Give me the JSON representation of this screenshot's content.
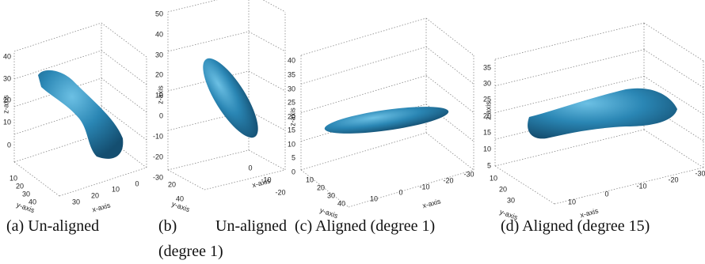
{
  "panels": [
    {
      "caption": "(a) Un-aligned",
      "x_label": "x-axis",
      "y_label": "y-axis",
      "z_label": "z-axis",
      "x_ticks": [
        "30",
        "20",
        "10",
        "0"
      ],
      "y_ticks": [
        "10",
        "20",
        "30",
        "40"
      ],
      "z_ticks": [
        "40",
        "30",
        "20",
        "10",
        "0"
      ]
    },
    {
      "caption": "(b) Un-aligned (degree 1)",
      "x_label": "x-axis",
      "y_label": "y-axis",
      "z_label": "z-axis",
      "x_ticks": [
        "0",
        "-10",
        "-20"
      ],
      "y_ticks": [
        "20",
        "40"
      ],
      "z_ticks": [
        "50",
        "40",
        "30",
        "20",
        "10",
        "0",
        "-10",
        "-20",
        "-30"
      ]
    },
    {
      "caption": "(c) Aligned (degree 1)",
      "x_label": "x-axis",
      "y_label": "y-axis",
      "z_label": "z-axis",
      "x_ticks": [
        "10",
        "0",
        "-10",
        "-20",
        "-30"
      ],
      "y_ticks": [
        "10",
        "20",
        "30",
        "40"
      ],
      "z_ticks": [
        "40",
        "35",
        "30",
        "25",
        "20",
        "15",
        "10",
        "5",
        "0"
      ]
    },
    {
      "caption": "(d) Aligned (degree 15)",
      "x_label": "x-axis",
      "y_label": "y-axis",
      "z_label": "z-axis",
      "x_ticks": [
        "10",
        "0",
        "-10",
        "-20",
        "-30"
      ],
      "y_ticks": [
        "10",
        "20",
        "30"
      ],
      "z_ticks": [
        "35",
        "30",
        "25",
        "20",
        "15",
        "10",
        "5"
      ]
    }
  ]
}
